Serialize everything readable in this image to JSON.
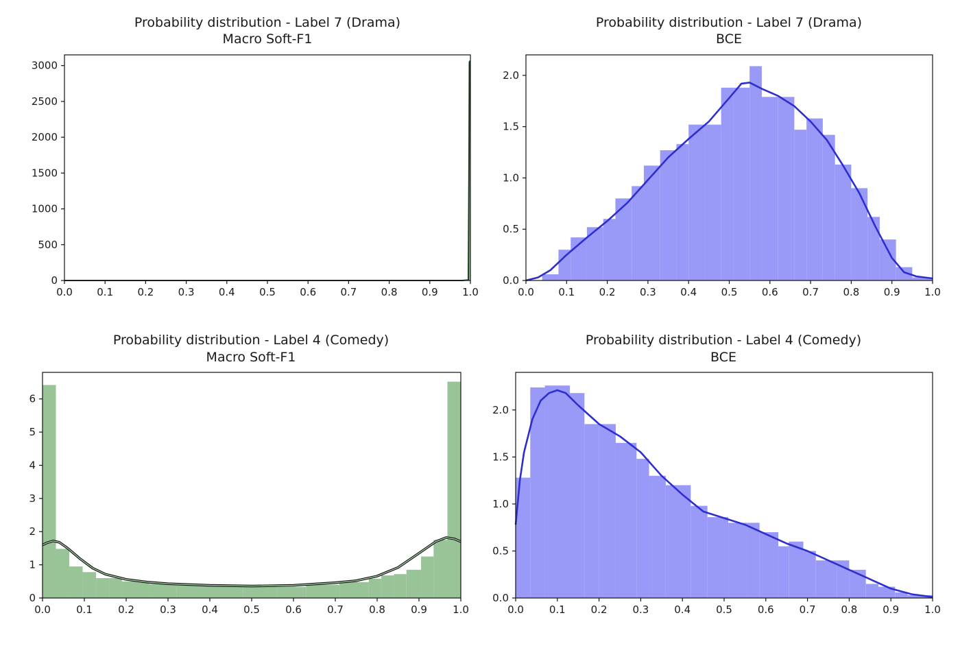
{
  "figure": {
    "background": "#ffffff"
  },
  "chart_data": [
    {
      "id": "drama_softf1",
      "type": "histogram",
      "title": "Probability distribution - Label 7 (Drama)",
      "subtitle": "Macro Soft-F1",
      "xlim": [
        0.0,
        1.0
      ],
      "ylim": [
        0,
        3150
      ],
      "xticks": [
        "0.0",
        "0.1",
        "0.2",
        "0.3",
        "0.4",
        "0.5",
        "0.6",
        "0.7",
        "0.8",
        "0.9",
        "1.0"
      ],
      "yticks": [
        "0",
        "500",
        "1000",
        "1500",
        "2000",
        "2500",
        "3000"
      ],
      "bar_color": "#98c498",
      "line_color": "#1d3b1d",
      "bins": [
        {
          "x0": 0.0,
          "x1": 0.995,
          "value": 0
        },
        {
          "x0": 0.995,
          "x1": 1.0,
          "value": 3050
        }
      ],
      "kde": [
        [
          0.0,
          0
        ],
        [
          0.98,
          0
        ],
        [
          0.995,
          8
        ],
        [
          0.998,
          3060
        ],
        [
          1.0,
          3060
        ]
      ]
    },
    {
      "id": "drama_bce",
      "type": "histogram",
      "title": "Probability distribution - Label 7 (Drama)",
      "subtitle": "BCE",
      "xlim": [
        0.0,
        1.0
      ],
      "ylim": [
        0,
        2.2
      ],
      "xticks": [
        "0.0",
        "0.1",
        "0.2",
        "0.3",
        "0.4",
        "0.5",
        "0.6",
        "0.7",
        "0.8",
        "0.9",
        "1.0"
      ],
      "yticks": [
        "0.0",
        "0.5",
        "1.0",
        "1.5",
        "2.0"
      ],
      "bar_color": "#9999f8",
      "line_color": "#2e2ecf",
      "bins": [
        {
          "x0": 0.0,
          "x1": 0.04,
          "value": 0.0
        },
        {
          "x0": 0.04,
          "x1": 0.08,
          "value": 0.06
        },
        {
          "x0": 0.08,
          "x1": 0.11,
          "value": 0.3
        },
        {
          "x0": 0.11,
          "x1": 0.15,
          "value": 0.42
        },
        {
          "x0": 0.15,
          "x1": 0.19,
          "value": 0.52
        },
        {
          "x0": 0.19,
          "x1": 0.22,
          "value": 0.6
        },
        {
          "x0": 0.22,
          "x1": 0.26,
          "value": 0.8
        },
        {
          "x0": 0.26,
          "x1": 0.29,
          "value": 0.92
        },
        {
          "x0": 0.29,
          "x1": 0.33,
          "value": 1.12
        },
        {
          "x0": 0.33,
          "x1": 0.37,
          "value": 1.27
        },
        {
          "x0": 0.37,
          "x1": 0.4,
          "value": 1.33
        },
        {
          "x0": 0.4,
          "x1": 0.44,
          "value": 1.52
        },
        {
          "x0": 0.44,
          "x1": 0.48,
          "value": 1.52
        },
        {
          "x0": 0.48,
          "x1": 0.51,
          "value": 1.88
        },
        {
          "x0": 0.51,
          "x1": 0.55,
          "value": 1.88
        },
        {
          "x0": 0.55,
          "x1": 0.58,
          "value": 2.09
        },
        {
          "x0": 0.58,
          "x1": 0.62,
          "value": 1.79
        },
        {
          "x0": 0.62,
          "x1": 0.66,
          "value": 1.79
        },
        {
          "x0": 0.66,
          "x1": 0.69,
          "value": 1.47
        },
        {
          "x0": 0.69,
          "x1": 0.73,
          "value": 1.58
        },
        {
          "x0": 0.73,
          "x1": 0.76,
          "value": 1.42
        },
        {
          "x0": 0.76,
          "x1": 0.8,
          "value": 1.13
        },
        {
          "x0": 0.8,
          "x1": 0.84,
          "value": 0.9
        },
        {
          "x0": 0.84,
          "x1": 0.87,
          "value": 0.62
        },
        {
          "x0": 0.87,
          "x1": 0.91,
          "value": 0.4
        },
        {
          "x0": 0.91,
          "x1": 0.95,
          "value": 0.13
        },
        {
          "x0": 0.95,
          "x1": 1.0,
          "value": 0.03
        }
      ],
      "kde": [
        [
          0.0,
          0.0
        ],
        [
          0.03,
          0.03
        ],
        [
          0.06,
          0.1
        ],
        [
          0.1,
          0.25
        ],
        [
          0.15,
          0.42
        ],
        [
          0.2,
          0.58
        ],
        [
          0.25,
          0.76
        ],
        [
          0.3,
          0.98
        ],
        [
          0.35,
          1.2
        ],
        [
          0.4,
          1.38
        ],
        [
          0.45,
          1.55
        ],
        [
          0.5,
          1.78
        ],
        [
          0.53,
          1.92
        ],
        [
          0.55,
          1.93
        ],
        [
          0.58,
          1.87
        ],
        [
          0.62,
          1.8
        ],
        [
          0.66,
          1.7
        ],
        [
          0.7,
          1.55
        ],
        [
          0.74,
          1.37
        ],
        [
          0.78,
          1.12
        ],
        [
          0.82,
          0.85
        ],
        [
          0.86,
          0.52
        ],
        [
          0.9,
          0.22
        ],
        [
          0.93,
          0.08
        ],
        [
          0.96,
          0.04
        ],
        [
          1.0,
          0.02
        ]
      ]
    },
    {
      "id": "comedy_softf1",
      "type": "histogram",
      "title": "Probability distribution - Label 4 (Comedy)",
      "subtitle": "Macro Soft-F1",
      "xlim": [
        0.0,
        1.0
      ],
      "ylim": [
        0,
        6.8
      ],
      "xticks": [
        "0.0",
        "0.1",
        "0.2",
        "0.3",
        "0.4",
        "0.5",
        "0.6",
        "0.7",
        "0.8",
        "0.9",
        "1.0"
      ],
      "yticks": [
        "0",
        "1",
        "2",
        "3",
        "4",
        "5",
        "6"
      ],
      "bar_color": "#98c498",
      "line_color": "#1d3b1d",
      "bins": [
        {
          "x0": 0.0,
          "x1": 0.032,
          "value": 6.42
        },
        {
          "x0": 0.032,
          "x1": 0.064,
          "value": 1.48
        },
        {
          "x0": 0.064,
          "x1": 0.096,
          "value": 0.95
        },
        {
          "x0": 0.096,
          "x1": 0.128,
          "value": 0.78
        },
        {
          "x0": 0.128,
          "x1": 0.16,
          "value": 0.6
        },
        {
          "x0": 0.16,
          "x1": 0.19,
          "value": 0.6
        },
        {
          "x0": 0.19,
          "x1": 0.255,
          "value": 0.5
        },
        {
          "x0": 0.255,
          "x1": 0.32,
          "value": 0.42
        },
        {
          "x0": 0.32,
          "x1": 0.4,
          "value": 0.38
        },
        {
          "x0": 0.4,
          "x1": 0.48,
          "value": 0.36
        },
        {
          "x0": 0.48,
          "x1": 0.56,
          "value": 0.35
        },
        {
          "x0": 0.56,
          "x1": 0.63,
          "value": 0.33
        },
        {
          "x0": 0.63,
          "x1": 0.71,
          "value": 0.4
        },
        {
          "x0": 0.71,
          "x1": 0.78,
          "value": 0.48
        },
        {
          "x0": 0.78,
          "x1": 0.81,
          "value": 0.58
        },
        {
          "x0": 0.81,
          "x1": 0.84,
          "value": 0.68
        },
        {
          "x0": 0.84,
          "x1": 0.87,
          "value": 0.72
        },
        {
          "x0": 0.87,
          "x1": 0.905,
          "value": 0.85
        },
        {
          "x0": 0.905,
          "x1": 0.935,
          "value": 1.25
        },
        {
          "x0": 0.935,
          "x1": 0.968,
          "value": 1.75
        },
        {
          "x0": 0.968,
          "x1": 1.0,
          "value": 6.52
        }
      ],
      "kde": [
        [
          0.0,
          1.6
        ],
        [
          0.01,
          1.66
        ],
        [
          0.025,
          1.72
        ],
        [
          0.04,
          1.68
        ],
        [
          0.06,
          1.5
        ],
        [
          0.09,
          1.18
        ],
        [
          0.12,
          0.9
        ],
        [
          0.15,
          0.72
        ],
        [
          0.2,
          0.56
        ],
        [
          0.25,
          0.48
        ],
        [
          0.3,
          0.43
        ],
        [
          0.4,
          0.38
        ],
        [
          0.5,
          0.36
        ],
        [
          0.6,
          0.38
        ],
        [
          0.7,
          0.46
        ],
        [
          0.75,
          0.52
        ],
        [
          0.8,
          0.66
        ],
        [
          0.85,
          0.92
        ],
        [
          0.9,
          1.35
        ],
        [
          0.94,
          1.7
        ],
        [
          0.965,
          1.82
        ],
        [
          0.985,
          1.78
        ],
        [
          1.0,
          1.7
        ]
      ]
    },
    {
      "id": "comedy_bce",
      "type": "histogram",
      "title": "Probability distribution - Label 4 (Comedy)",
      "subtitle": "BCE",
      "xlim": [
        0.0,
        1.0
      ],
      "ylim": [
        0,
        2.4
      ],
      "xticks": [
        "0.0",
        "0.1",
        "0.2",
        "0.3",
        "0.4",
        "0.5",
        "0.6",
        "0.7",
        "0.8",
        "0.9",
        "1.0"
      ],
      "yticks": [
        "0.0",
        "0.5",
        "1.0",
        "1.5",
        "2.0"
      ],
      "bar_color": "#9999f8",
      "line_color": "#2e2ecf",
      "bins": [
        {
          "x0": 0.0,
          "x1": 0.035,
          "value": 1.28
        },
        {
          "x0": 0.035,
          "x1": 0.07,
          "value": 2.24
        },
        {
          "x0": 0.07,
          "x1": 0.13,
          "value": 2.26
        },
        {
          "x0": 0.13,
          "x1": 0.165,
          "value": 2.18
        },
        {
          "x0": 0.165,
          "x1": 0.2,
          "value": 1.85
        },
        {
          "x0": 0.2,
          "x1": 0.24,
          "value": 1.85
        },
        {
          "x0": 0.24,
          "x1": 0.29,
          "value": 1.65
        },
        {
          "x0": 0.29,
          "x1": 0.32,
          "value": 1.48
        },
        {
          "x0": 0.32,
          "x1": 0.36,
          "value": 1.3
        },
        {
          "x0": 0.36,
          "x1": 0.42,
          "value": 1.2
        },
        {
          "x0": 0.42,
          "x1": 0.46,
          "value": 0.98
        },
        {
          "x0": 0.46,
          "x1": 0.51,
          "value": 0.86
        },
        {
          "x0": 0.51,
          "x1": 0.555,
          "value": 0.8
        },
        {
          "x0": 0.555,
          "x1": 0.585,
          "value": 0.8
        },
        {
          "x0": 0.585,
          "x1": 0.63,
          "value": 0.7
        },
        {
          "x0": 0.63,
          "x1": 0.655,
          "value": 0.55
        },
        {
          "x0": 0.655,
          "x1": 0.69,
          "value": 0.6
        },
        {
          "x0": 0.69,
          "x1": 0.72,
          "value": 0.5
        },
        {
          "x0": 0.72,
          "x1": 0.77,
          "value": 0.4
        },
        {
          "x0": 0.77,
          "x1": 0.8,
          "value": 0.4
        },
        {
          "x0": 0.8,
          "x1": 0.84,
          "value": 0.3
        },
        {
          "x0": 0.84,
          "x1": 0.87,
          "value": 0.15
        },
        {
          "x0": 0.87,
          "x1": 0.91,
          "value": 0.12
        },
        {
          "x0": 0.91,
          "x1": 0.94,
          "value": 0.06
        },
        {
          "x0": 0.94,
          "x1": 1.0,
          "value": 0.03
        }
      ],
      "kde": [
        [
          0.0,
          0.78
        ],
        [
          0.01,
          1.25
        ],
        [
          0.02,
          1.55
        ],
        [
          0.04,
          1.9
        ],
        [
          0.06,
          2.1
        ],
        [
          0.08,
          2.18
        ],
        [
          0.1,
          2.21
        ],
        [
          0.12,
          2.18
        ],
        [
          0.15,
          2.05
        ],
        [
          0.2,
          1.85
        ],
        [
          0.25,
          1.72
        ],
        [
          0.3,
          1.55
        ],
        [
          0.35,
          1.3
        ],
        [
          0.4,
          1.1
        ],
        [
          0.45,
          0.92
        ],
        [
          0.5,
          0.85
        ],
        [
          0.55,
          0.78
        ],
        [
          0.6,
          0.68
        ],
        [
          0.65,
          0.58
        ],
        [
          0.7,
          0.5
        ],
        [
          0.75,
          0.4
        ],
        [
          0.8,
          0.3
        ],
        [
          0.85,
          0.2
        ],
        [
          0.9,
          0.1
        ],
        [
          0.95,
          0.04
        ],
        [
          1.0,
          0.01
        ]
      ]
    }
  ]
}
